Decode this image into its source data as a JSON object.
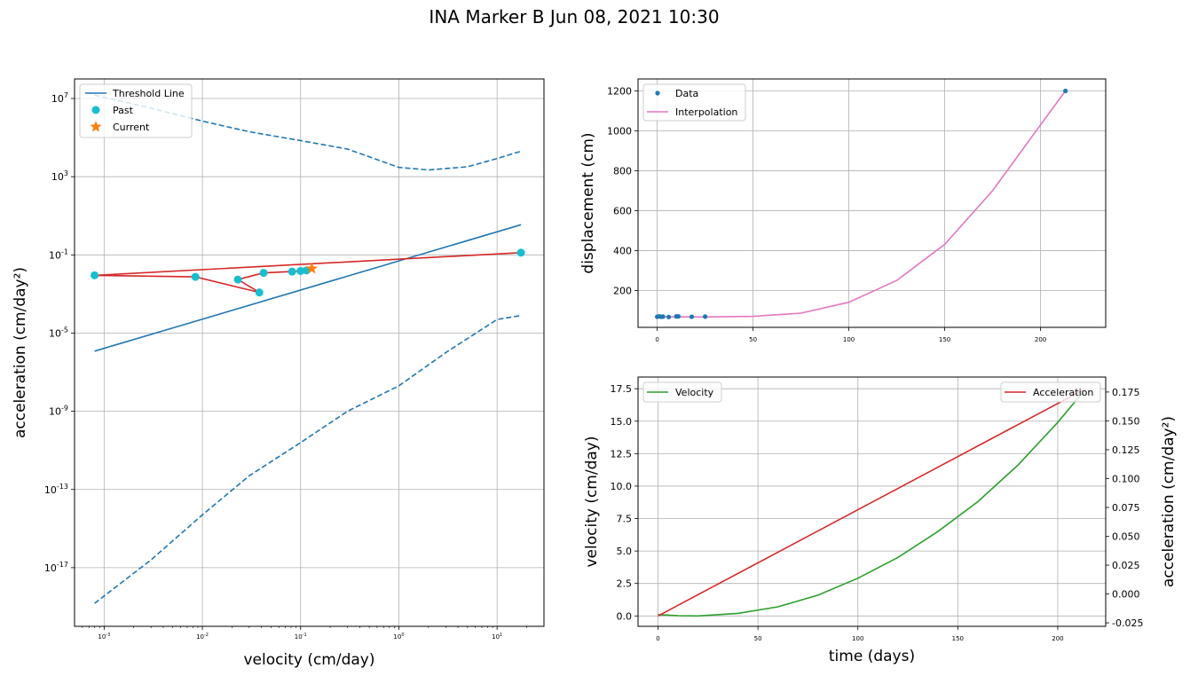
{
  "figure": {
    "suptitle": "INA Marker B Jun 08, 2021 10:30"
  },
  "colors": {
    "blue": "#1f77b4",
    "red": "#d62728",
    "cyan": "#17becf",
    "orange": "#ff7f0e",
    "pink": "#e377c2",
    "green": "#2ca02c",
    "grid": "#b0b0b0"
  },
  "chart_data": [
    {
      "type": "line",
      "panel": "tvp",
      "xlabel": "velocity (cm/day)",
      "ylabel": "acceleration (cm/day²)",
      "xscale": "log",
      "yscale": "log",
      "xlim": [
        0.0005,
        30
      ],
      "ylim": [
        1e-20,
        100000000.0
      ],
      "xticks": [
        {
          "v": 0.001,
          "e": "-3"
        },
        {
          "v": 0.01,
          "e": "-2"
        },
        {
          "v": 0.1,
          "e": "-1"
        },
        {
          "v": 1,
          "e": "0"
        },
        {
          "v": 10,
          "e": "1"
        }
      ],
      "yticks": [
        {
          "v": 1e-17,
          "e": "-17"
        },
        {
          "v": 1e-13,
          "e": "-13"
        },
        {
          "v": 1e-09,
          "e": "-9"
        },
        {
          "v": 1e-05,
          "e": "-5"
        },
        {
          "v": 0.1,
          "e": "-1"
        },
        {
          "v": 1000,
          "e": "3"
        },
        {
          "v": 10000000.0,
          "e": "7"
        }
      ],
      "grid": true,
      "legend_position": "top-left",
      "legend": [
        "Threshold Line",
        "Past",
        "Current"
      ],
      "threshold_line": {
        "x": [
          0.0008,
          17.5
        ],
        "y": [
          1.2e-06,
          3.5
        ]
      },
      "upper_bound": {
        "x": [
          0.0008,
          0.003,
          0.01,
          0.03,
          0.1,
          0.3,
          1,
          2,
          5,
          10,
          17.5
        ],
        "y": [
          15000000.0,
          3200000.0,
          700000.0,
          200000.0,
          70000.0,
          26000.0,
          3000.0,
          2200.0,
          3200.0,
          8500.0,
          20000.0
        ]
      },
      "lower_bound": {
        "x": [
          0.0008,
          0.003,
          0.01,
          0.03,
          0.1,
          0.3,
          1,
          3,
          10,
          17.5
        ],
        "y": [
          1.5e-19,
          2.5e-17,
          5e-15,
          5e-13,
          2.5e-11,
          1e-09,
          2e-08,
          1e-06,
          5e-05,
          8e-05
        ]
      },
      "past_x": [
        0.0008,
        0.0085,
        0.023,
        0.038,
        0.042,
        0.082,
        0.1,
        0.115,
        17.5
      ],
      "past_y": [
        0.009,
        0.0075,
        0.0055,
        0.0012,
        0.012,
        0.014,
        0.015,
        0.016,
        0.13
      ],
      "path_x": [
        17.5,
        0.0008,
        0.0085,
        0.038,
        0.023,
        0.042,
        0.082,
        0.1,
        0.115,
        0.13
      ],
      "path_y": [
        0.13,
        0.009,
        0.0075,
        0.0012,
        0.0055,
        0.012,
        0.014,
        0.015,
        0.016,
        0.02
      ],
      "current_x": [
        0.13
      ],
      "current_y": [
        0.02
      ]
    },
    {
      "type": "line",
      "panel": "displacement",
      "ylabel": "displacement (cm)",
      "xlim": [
        -10,
        234
      ],
      "ylim": [
        15,
        1260
      ],
      "xticks": [
        0,
        50,
        100,
        150,
        200
      ],
      "yticks": [
        200,
        400,
        600,
        800,
        1000,
        1200
      ],
      "grid": true,
      "legend_position": "top-left",
      "legend": [
        "Data",
        "Interpolation"
      ],
      "data_x": [
        0,
        1,
        2,
        3,
        6,
        10,
        11,
        18,
        25,
        213
      ],
      "data_y": [
        68,
        70,
        68,
        69,
        67,
        70,
        70,
        68,
        69,
        1200
      ],
      "interp_x": [
        0,
        25,
        50,
        75,
        100,
        125,
        150,
        175,
        200,
        213
      ],
      "interp_y": [
        68,
        67,
        70,
        86,
        141,
        250,
        431,
        700,
        1030,
        1200
      ]
    },
    {
      "type": "line",
      "panel": "velocity-acceleration",
      "xlabel": "time (days)",
      "ylabel": "velocity (cm/day)",
      "ylabel_right": "acceleration (cm/day²)",
      "xlim": [
        -10,
        224
      ],
      "ylim": [
        -0.8,
        18.4
      ],
      "ylim_right": [
        -0.028,
        0.188
      ],
      "xticks": [
        0,
        50,
        100,
        150,
        200
      ],
      "yticks": [
        0.0,
        2.5,
        5.0,
        7.5,
        10.0,
        12.5,
        15.0,
        17.5
      ],
      "yticks_right": [
        -0.025,
        0.0,
        0.025,
        0.05,
        0.075,
        0.1,
        0.125,
        0.15,
        0.175
      ],
      "grid": true,
      "legend_left": [
        "Velocity"
      ],
      "legend_right": [
        "Acceleration"
      ],
      "velocity_x": [
        0,
        10,
        20,
        40,
        60,
        80,
        100,
        120,
        140,
        160,
        180,
        200,
        213
      ],
      "velocity_y": [
        0.1,
        0.02,
        0.0,
        0.2,
        0.7,
        1.6,
        2.9,
        4.5,
        6.5,
        8.8,
        11.6,
        14.9,
        17.3
      ],
      "accel_x": [
        0,
        213
      ],
      "accel_y": [
        -0.019,
        0.177
      ]
    }
  ]
}
